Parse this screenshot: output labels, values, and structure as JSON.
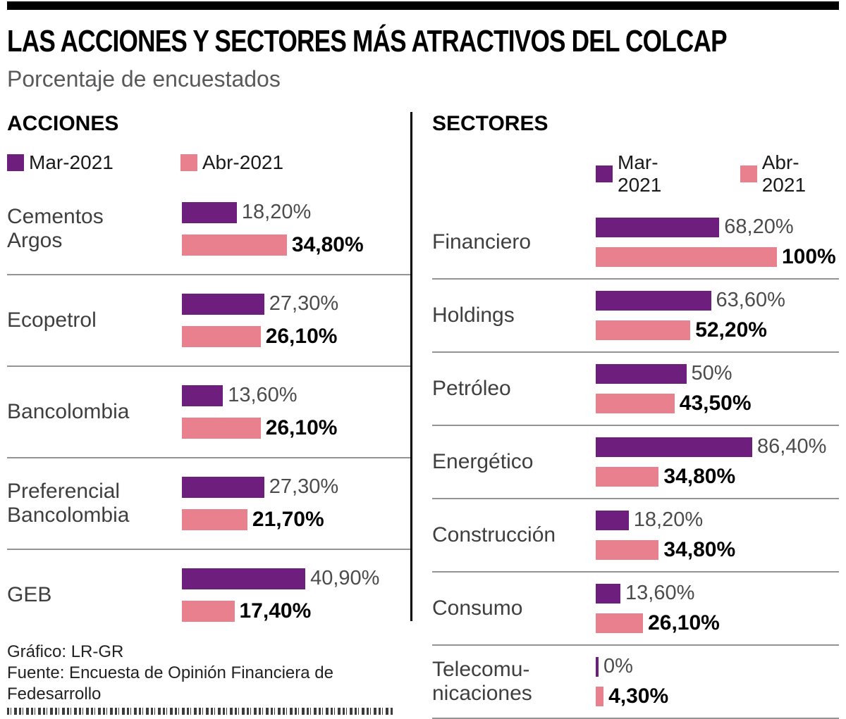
{
  "header": {
    "title": "LAS ACCIONES Y SECTORES MÁS ATRACTIVOS DEL COLCAP",
    "subtitle": "Porcentaje de encuestados"
  },
  "colors": {
    "mar": "#6e1f7d",
    "abr": "#e9808e"
  },
  "footer": {
    "credit": "Gráfico: LR-GR",
    "source": "Fuente: Encuesta de Opinión Financiera de Fedesarrollo"
  },
  "chart_data": [
    {
      "type": "bar",
      "orientation": "horizontal",
      "title": "ACCIONES",
      "unit": "%",
      "xlim": [
        0,
        45
      ],
      "legend_position": "top",
      "categories": [
        "Cementos\nArgos",
        "Ecopetrol",
        "Bancolombia",
        "Preferencial\nBancolombia",
        "GEB"
      ],
      "series": [
        {
          "name": "Mar-2021",
          "color": "#6e1f7d",
          "values": [
            18.2,
            27.3,
            13.6,
            27.3,
            40.9
          ],
          "labels": [
            "18,20%",
            "27,30%",
            "13,60%",
            "27,30%",
            "40,90%"
          ]
        },
        {
          "name": "Abr-2021",
          "color": "#e9808e",
          "values": [
            34.8,
            26.1,
            26.1,
            21.7,
            17.4
          ],
          "labels": [
            "34,80%",
            "26,10%",
            "26,10%",
            "21,70%",
            "17,40%"
          ]
        }
      ]
    },
    {
      "type": "bar",
      "orientation": "horizontal",
      "title": "SECTORES",
      "unit": "%",
      "xlim": [
        0,
        100
      ],
      "legend_position": "top",
      "categories": [
        "Financiero",
        "Holdings",
        "Petróleo",
        "Energético",
        "Construcción",
        "Consumo",
        "Telecomu-\nnicaciones"
      ],
      "series": [
        {
          "name": "Mar-2021",
          "color": "#6e1f7d",
          "values": [
            68.2,
            63.6,
            50,
            86.4,
            18.2,
            13.6,
            0
          ],
          "labels": [
            "68,20%",
            "63,60%",
            "50%",
            "86,40%",
            "18,20%",
            "13,60%",
            "0%"
          ]
        },
        {
          "name": "Abr-2021",
          "color": "#e9808e",
          "values": [
            100,
            52.2,
            43.5,
            34.8,
            34.8,
            26.1,
            4.3
          ],
          "labels": [
            "100%",
            "52,20%",
            "43,50%",
            "34,80%",
            "34,80%",
            "26,10%",
            "4,30%"
          ]
        }
      ]
    }
  ]
}
